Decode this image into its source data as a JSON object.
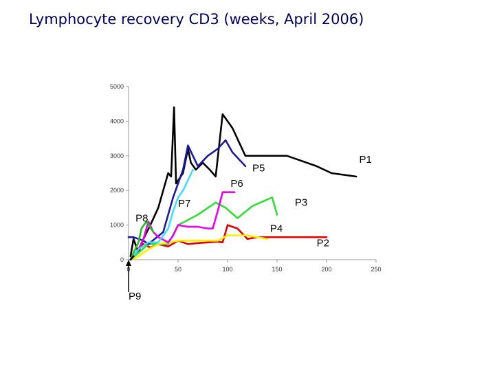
{
  "title": "Lymphocyte recovery CD3 (weeks, April 2006)",
  "chart_data": {
    "type": "line",
    "title": "Lymphocyte recovery CD3 (weeks, April 2006)",
    "xlabel": "",
    "ylabel": "",
    "xlim": [
      0,
      250
    ],
    "ylim": [
      0,
      5000
    ],
    "xticks": [
      0,
      50,
      100,
      150,
      200,
      250
    ],
    "yticks": [
      0,
      1000,
      2000,
      3000,
      4000,
      5000
    ],
    "grid": false,
    "series": [
      {
        "name": "P1",
        "color": "#000000",
        "x": [
          2,
          5,
          10,
          15,
          22,
          30,
          35,
          40,
          43,
          46,
          48,
          55,
          60,
          63,
          68,
          75,
          82,
          88,
          95,
          100,
          105,
          118,
          140,
          160,
          170,
          190,
          205,
          230
        ],
        "y": [
          100,
          600,
          200,
          600,
          1000,
          1500,
          2000,
          2500,
          2400,
          4400,
          2200,
          2500,
          3200,
          2800,
          2600,
          2800,
          2600,
          2400,
          4200,
          4000,
          3800,
          3000,
          3000,
          3000,
          2900,
          2700,
          2500,
          2400
        ]
      },
      {
        "name": "P2",
        "color": "#e00000",
        "x": [
          2,
          5,
          10,
          15,
          22,
          30,
          40,
          50,
          60,
          70,
          80,
          90,
          95,
          100,
          110,
          120,
          130,
          150,
          175,
          200
        ],
        "y": [
          0,
          100,
          300,
          450,
          350,
          450,
          380,
          550,
          450,
          480,
          500,
          520,
          500,
          1000,
          900,
          600,
          650,
          650,
          650,
          650
        ]
      },
      {
        "name": "P3",
        "color": "#33dd33",
        "x": [
          2,
          10,
          20,
          30,
          40,
          50,
          70,
          88,
          98,
          110,
          125,
          145,
          150
        ],
        "y": [
          0,
          200,
          450,
          450,
          450,
          1000,
          1300,
          1650,
          1500,
          1200,
          1550,
          1800,
          1300
        ]
      },
      {
        "name": "P4",
        "color": "#ffee00",
        "x": [
          2,
          10,
          20,
          30,
          40,
          50,
          60,
          70,
          80,
          90,
          100,
          110,
          120,
          130,
          140
        ],
        "y": [
          0,
          100,
          300,
          450,
          500,
          550,
          550,
          550,
          550,
          550,
          700,
          700,
          700,
          650,
          600
        ]
      },
      {
        "name": "P5",
        "color": "#1a1aa0",
        "x": [
          0,
          5,
          15,
          20,
          35,
          45,
          55,
          60,
          70,
          80,
          90,
          98,
          105,
          118
        ],
        "y": [
          650,
          650,
          550,
          450,
          800,
          1800,
          2600,
          3300,
          2700,
          3000,
          3200,
          3450,
          3100,
          2700
        ]
      },
      {
        "name": "P6",
        "color": "#ee00ee",
        "x": [
          2,
          10,
          15,
          20,
          25,
          30,
          40,
          45,
          50,
          60,
          70,
          80,
          85,
          90,
          95,
          100,
          107
        ],
        "y": [
          0,
          300,
          600,
          1100,
          800,
          650,
          500,
          700,
          1000,
          950,
          950,
          900,
          900,
          1400,
          1950,
          1950,
          1950
        ]
      },
      {
        "name": "P7",
        "color": "#44ddff",
        "x": [
          2,
          10,
          20,
          30,
          35,
          40,
          45,
          50,
          55,
          65
        ],
        "y": [
          0,
          300,
          500,
          500,
          700,
          900,
          1400,
          1800,
          2000,
          2600
        ]
      },
      {
        "name": "P8",
        "color": "#22bb22",
        "x": [
          2,
          5,
          10,
          13,
          18,
          25
        ],
        "y": [
          0,
          200,
          500,
          900,
          1100,
          800
        ]
      },
      {
        "name": "P9",
        "color": "#000000",
        "x": [
          2,
          5
        ],
        "y": [
          0,
          100
        ]
      }
    ],
    "annotations": [
      {
        "label": "P1",
        "x": 233,
        "y": 2800
      },
      {
        "label": "P5",
        "x": 125,
        "y": 2550
      },
      {
        "label": "P6",
        "x": 103,
        "y": 2100
      },
      {
        "label": "P7",
        "x": 50,
        "y": 1530
      },
      {
        "label": "P3",
        "x": 168,
        "y": 1560
      },
      {
        "label": "P8",
        "x": 7,
        "y": 1100
      },
      {
        "label": "P4",
        "x": 143,
        "y": 800
      },
      {
        "label": "P2",
        "x": 190,
        "y": 390
      },
      {
        "label": "P9",
        "x": 0,
        "y": -1150
      }
    ],
    "arrow": {
      "from_label": "P9",
      "to": [
        0,
        0
      ]
    }
  }
}
